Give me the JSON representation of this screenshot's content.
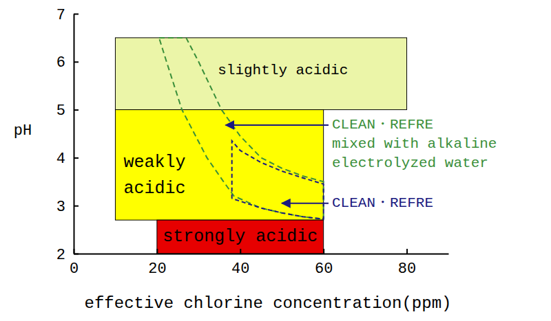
{
  "chart_data": {
    "type": "area",
    "xlabel": "effective chlorine concentration(ppm)",
    "ylabel": "pH",
    "xlim": [
      0,
      90
    ],
    "xticks": [
      0,
      20,
      40,
      60,
      80
    ],
    "ylim": [
      2,
      7
    ],
    "yticks": [
      2,
      3,
      4,
      5,
      6,
      7
    ],
    "grid": false,
    "regions": [
      {
        "name": "slightly acidic",
        "color": "#ebf5a8",
        "x": [
          10,
          80
        ],
        "values": [
          5,
          6.5
        ]
      },
      {
        "name": [
          "weakly",
          "acidic"
        ],
        "color": "#ffff00",
        "x": [
          10,
          60
        ],
        "values": [
          2.7,
          5
        ]
      },
      {
        "name": "strongly acidic",
        "color": "#e60000",
        "x": [
          20,
          60
        ],
        "values": [
          2,
          2.7
        ]
      }
    ],
    "series": [
      {
        "name": [
          "CLEAN・REFRE",
          "mixed with alkaline",
          "electrolyzed water"
        ],
        "color": "#3a8f3a",
        "line_style": "dashed",
        "x": [
          20.5,
          27,
          30,
          35.5,
          40,
          45,
          50,
          55,
          60,
          60,
          55,
          50,
          45,
          38.5,
          36,
          32,
          26,
          22.3,
          20.5
        ],
        "values": [
          6.5,
          6.5,
          6.0,
          5.0,
          4.45,
          4.0,
          3.78,
          3.62,
          3.5,
          2.72,
          2.77,
          2.85,
          2.95,
          3.2,
          3.5,
          4.0,
          5.0,
          6.0,
          6.5
        ],
        "arrow": {
          "x": 36.5,
          "y": 4.68
        }
      },
      {
        "name": [
          "CLEAN・REFRE"
        ],
        "color": "#1a1a80",
        "line_style": "dashed",
        "x": [
          38,
          38,
          40,
          45,
          50,
          55,
          60,
          60,
          55,
          50,
          45,
          38
        ],
        "values": [
          3.15,
          4.35,
          4.15,
          3.9,
          3.72,
          3.58,
          3.45,
          2.72,
          2.77,
          2.85,
          2.95,
          3.15
        ],
        "arrow": {
          "x": 50,
          "y": 3.05
        }
      }
    ]
  }
}
